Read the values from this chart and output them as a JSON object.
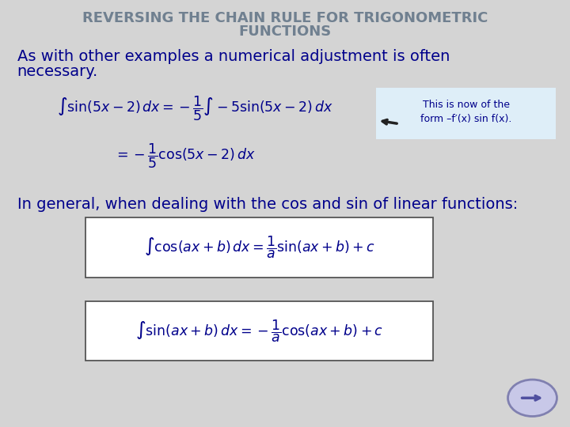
{
  "bg_color": "#d4d4d4",
  "title_line1": "REVERSING THE CHAIN RULE FOR TRIGONOMETRIC",
  "title_line2": "FUNCTIONS",
  "title_color": "#708090",
  "title_fontsize": 13,
  "body_text_line1": "As with other examples a numerical adjustment is often",
  "body_text_line2": "necessary.",
  "body_color": "#00008B",
  "body_fontsize": 14,
  "annotation_line1": "This is now of the",
  "annotation_line2": "form –f′(x) sin f(x).",
  "annotation_color": "#00008B",
  "annotation_bg": "#deeef8",
  "general_text": "In general, when dealing with the cos and sin of linear functions:",
  "general_color": "#00008B",
  "general_fontsize": 14,
  "box_color": "#00008B",
  "box_bg": "#ffffff",
  "box_border": "#555555",
  "arrow_color": "#222222",
  "nav_circle_color": "#c8c8e8",
  "nav_border_color": "#8080b0",
  "nav_arrow_color": "#5050a0"
}
